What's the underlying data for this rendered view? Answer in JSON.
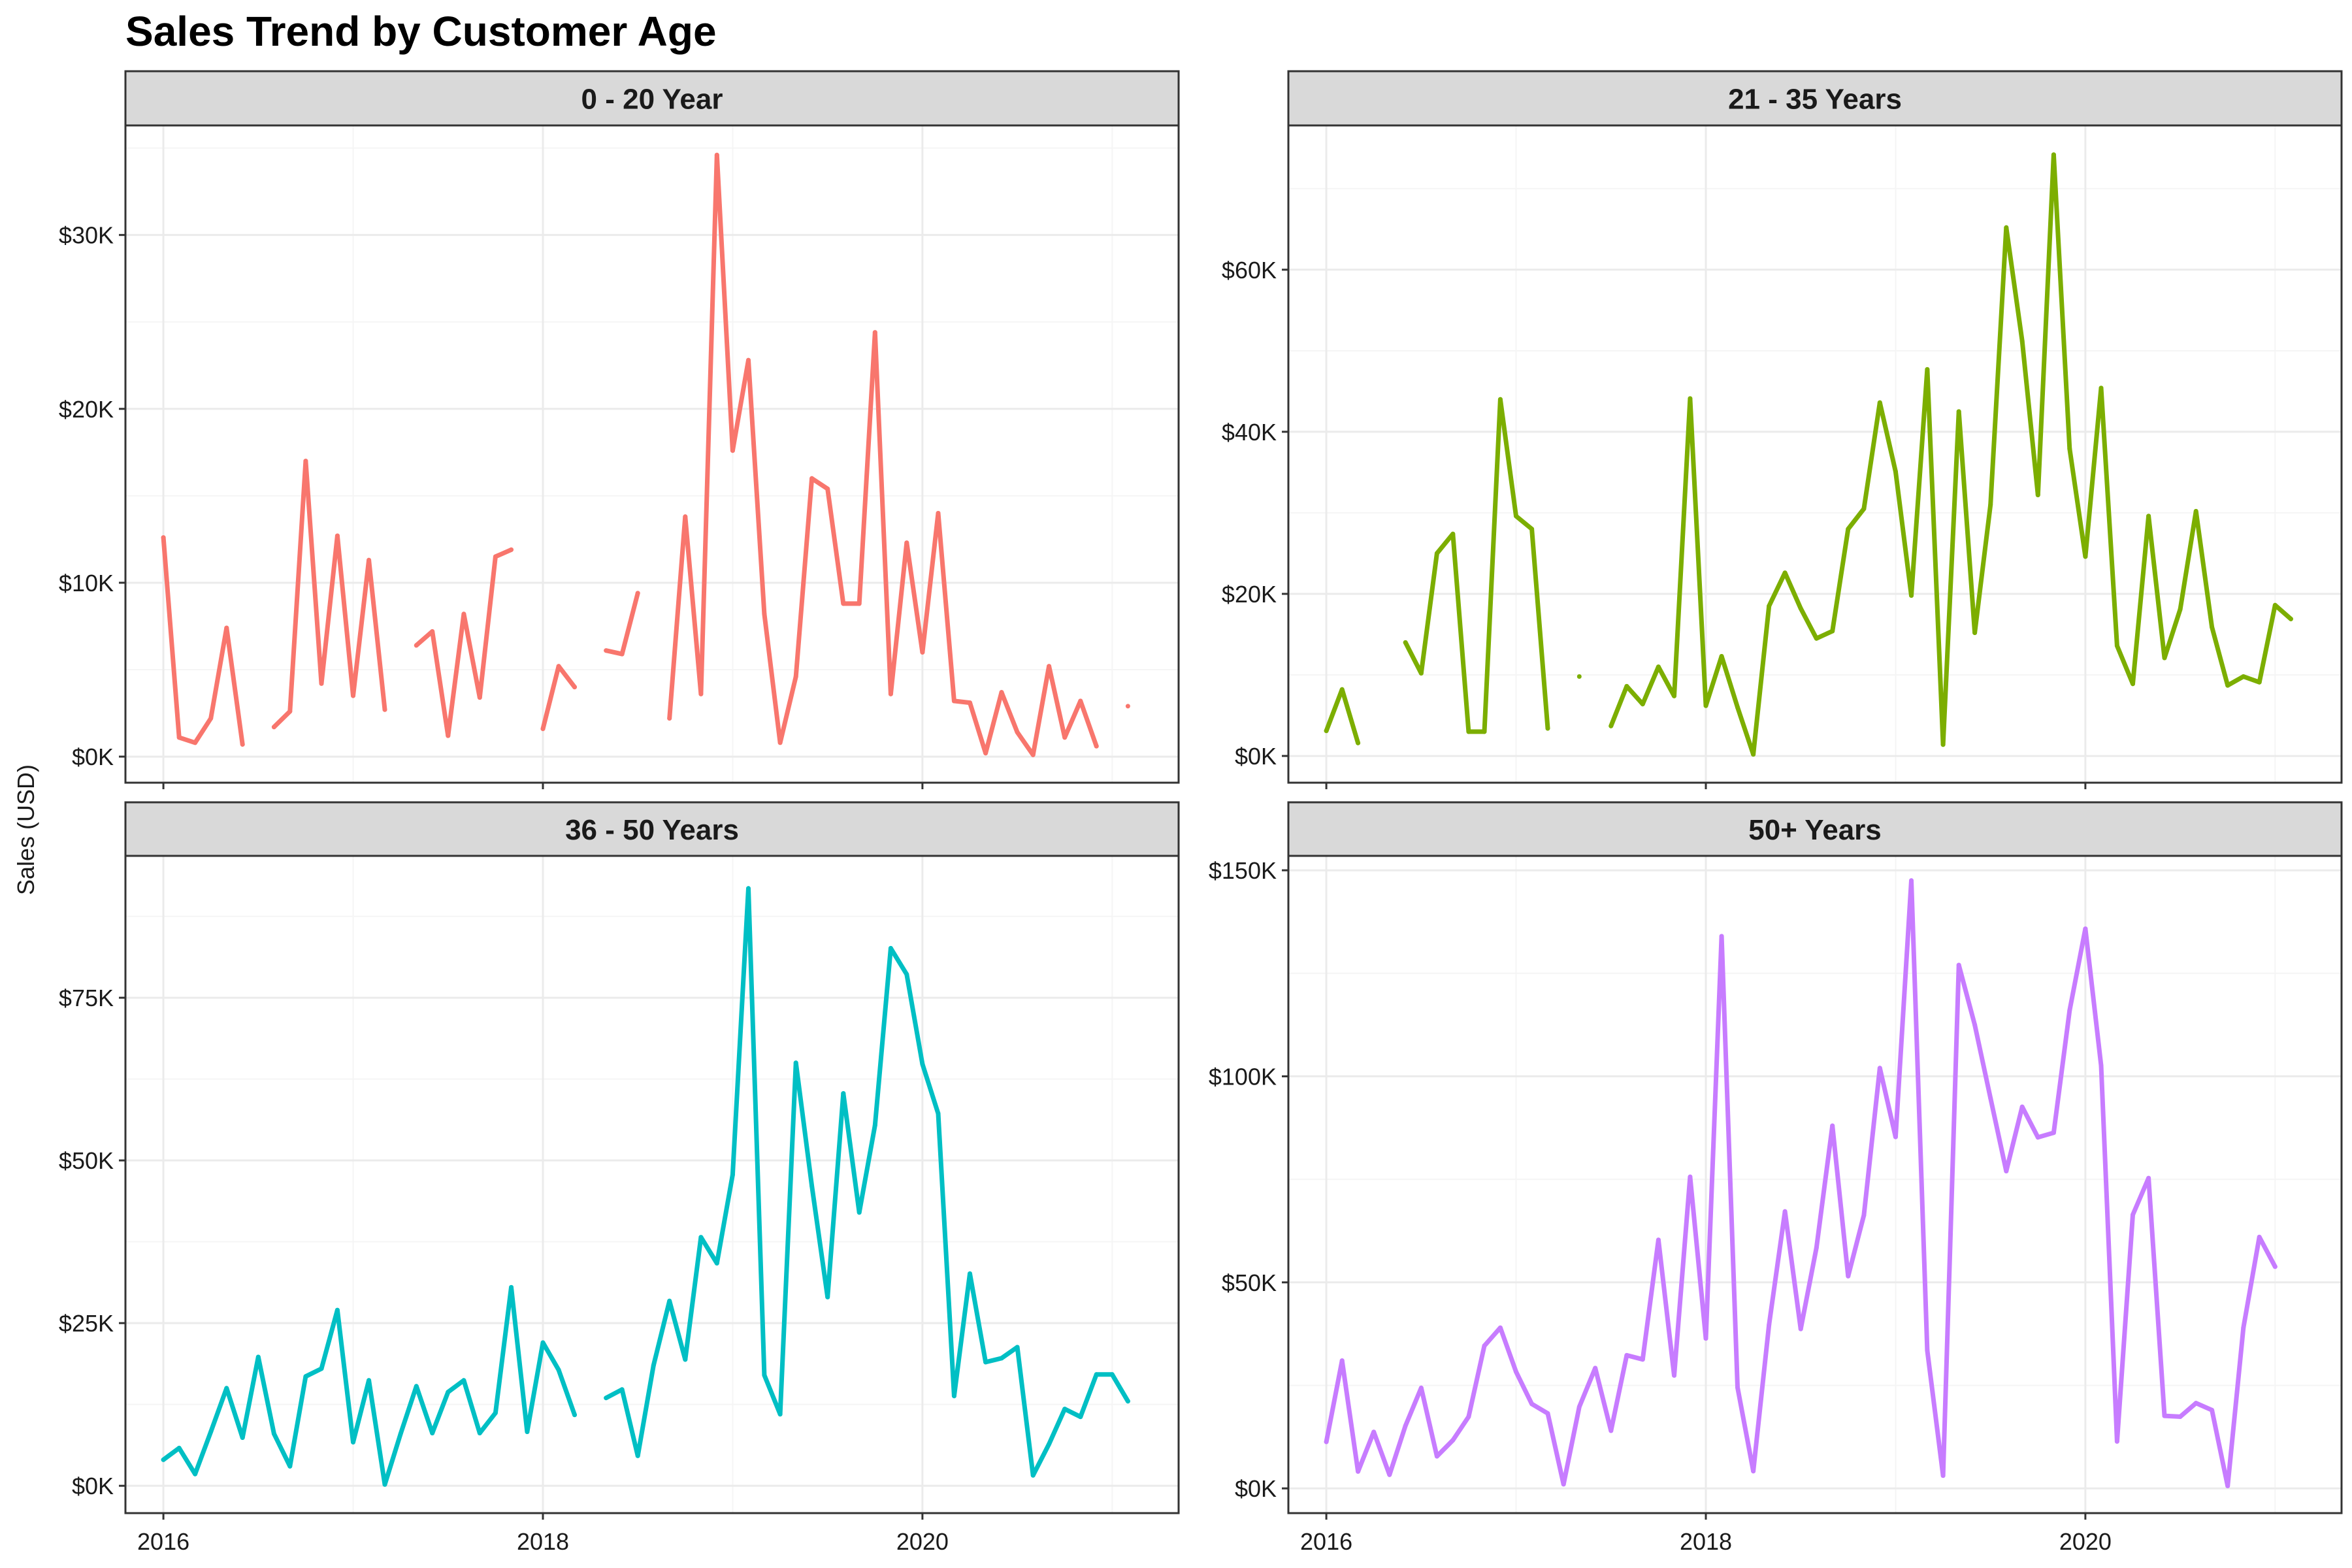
{
  "title": "Sales Trend by Customer Age",
  "ylabel": "Sales (USD)",
  "colors": {
    "strip_bg": "#d9d9d9",
    "panel_border": "#333333",
    "grid_major": "#ebebeb",
    "grid_minor": "#f5f5f5"
  },
  "chart_data": {
    "type": "line",
    "title": "Sales Trend by Customer Age",
    "xlabel": "",
    "ylabel": "Sales (USD)",
    "x_ticks": [
      2016,
      2018,
      2020
    ],
    "x_tick_labels": [
      "2016",
      "2018",
      "2020"
    ],
    "xlim": [
      2015.8,
      2021.35
    ],
    "grid": true,
    "x": [
      2016.0,
      2016.083,
      2016.167,
      2016.25,
      2016.333,
      2016.417,
      2016.5,
      2016.583,
      2016.667,
      2016.75,
      2016.833,
      2016.917,
      2017.0,
      2017.083,
      2017.167,
      2017.25,
      2017.333,
      2017.417,
      2017.5,
      2017.583,
      2017.667,
      2017.75,
      2017.833,
      2017.917,
      2018.0,
      2018.083,
      2018.167,
      2018.25,
      2018.333,
      2018.417,
      2018.5,
      2018.583,
      2018.667,
      2018.75,
      2018.833,
      2018.917,
      2019.0,
      2019.083,
      2019.167,
      2019.25,
      2019.333,
      2019.417,
      2019.5,
      2019.583,
      2019.667,
      2019.75,
      2019.833,
      2019.917,
      2020.0,
      2020.083,
      2020.167,
      2020.25,
      2020.333,
      2020.417,
      2020.5,
      2020.583,
      2020.667,
      2020.75,
      2020.833,
      2020.917,
      2021.0,
      2021.083
    ],
    "panels": [
      {
        "name": "0 - 20 Year",
        "color": "#F8766D",
        "ylim": [
          -1500,
          36300
        ],
        "y_ticks": [
          0,
          10000,
          20000,
          30000
        ],
        "y_tick_labels": [
          "$0K",
          "$10K",
          "$20K",
          "$30K"
        ],
        "values": [
          12600,
          1100,
          800,
          2200,
          7400,
          700,
          null,
          1700,
          2600,
          17000,
          4200,
          12700,
          3500,
          11300,
          2700,
          null,
          6400,
          7200,
          1200,
          8200,
          3400,
          11500,
          11900,
          null,
          1600,
          5200,
          4000,
          null,
          6100,
          5900,
          9400,
          null,
          2200,
          13800,
          3600,
          34600,
          17600,
          22800,
          8200,
          800,
          4600,
          16000,
          15400,
          8800,
          8800,
          24400,
          3600,
          12300,
          6000,
          14000,
          3200,
          3100,
          200,
          3700,
          1400,
          100,
          5200,
          1100,
          3200,
          600,
          null,
          2900
        ]
      },
      {
        "name": "21 - 35 Years",
        "color": "#7CAE00",
        "ylim": [
          -3300,
          77800
        ],
        "y_ticks": [
          0,
          20000,
          40000,
          60000
        ],
        "y_tick_labels": [
          "$0K",
          "$20K",
          "$40K",
          "$60K"
        ],
        "values": [
          3100,
          8200,
          1600,
          null,
          null,
          14000,
          10200,
          25000,
          27400,
          3000,
          3000,
          44000,
          29600,
          28000,
          3400,
          null,
          9800,
          null,
          3700,
          8600,
          6400,
          11000,
          7400,
          44100,
          6200,
          12300,
          6000,
          200,
          18500,
          22600,
          18200,
          14500,
          15400,
          28000,
          30500,
          43600,
          35100,
          19800,
          47700,
          1400,
          42500,
          15200,
          31000,
          65200,
          51200,
          32200,
          74200,
          37900,
          24600,
          45400,
          13600,
          8900,
          29600,
          12100,
          18100,
          30200,
          15900,
          8700,
          9800,
          9100,
          18600,
          16900
        ]
      },
      {
        "name": "36 - 50 Years",
        "color": "#00BFC4",
        "ylim": [
          -4200,
          96800
        ],
        "y_ticks": [
          0,
          25000,
          50000,
          75000
        ],
        "y_tick_labels": [
          "$0K",
          "$25K",
          "$50K",
          "$75K"
        ],
        "values": [
          4000,
          5800,
          1800,
          8300,
          15000,
          7400,
          19800,
          8000,
          3000,
          16800,
          18000,
          27000,
          6700,
          16200,
          200,
          8000,
          15300,
          8100,
          14400,
          16200,
          8100,
          11200,
          30500,
          8300,
          22000,
          17800,
          10900,
          null,
          13500,
          14800,
          4600,
          18500,
          28400,
          19400,
          38200,
          34200,
          47800,
          91800,
          17000,
          11000,
          65000,
          46100,
          29000,
          60300,
          42000,
          55400,
          82600,
          78600,
          64800,
          57200,
          13800,
          32600,
          19000,
          19600,
          21300,
          1600,
          6400,
          11800,
          10600,
          17100,
          17100,
          13000
        ]
      },
      {
        "name": "50+ Years",
        "color": "#C77CFF",
        "ylim": [
          -6000,
          153500
        ],
        "y_ticks": [
          0,
          50000,
          100000,
          150000
        ],
        "y_tick_labels": [
          "$0K",
          "$50K",
          "$100K",
          "$150K"
        ],
        "values": [
          11300,
          31000,
          4100,
          13700,
          3300,
          15200,
          24400,
          7800,
          11700,
          17400,
          34600,
          39000,
          28300,
          20500,
          18200,
          1000,
          19800,
          29200,
          14000,
          32300,
          31300,
          60300,
          27400,
          75600,
          36400,
          134000,
          24500,
          4200,
          39700,
          67200,
          38700,
          58400,
          88000,
          51500,
          66300,
          102000,
          85300,
          147500,
          33500,
          3100,
          127000,
          112500,
          94700,
          77000,
          92600,
          85200,
          86300,
          116000,
          135800,
          102600,
          11400,
          66400,
          75300,
          17600,
          17400,
          20700,
          19000,
          600,
          39000,
          61000,
          53800,
          null
        ]
      }
    ]
  }
}
